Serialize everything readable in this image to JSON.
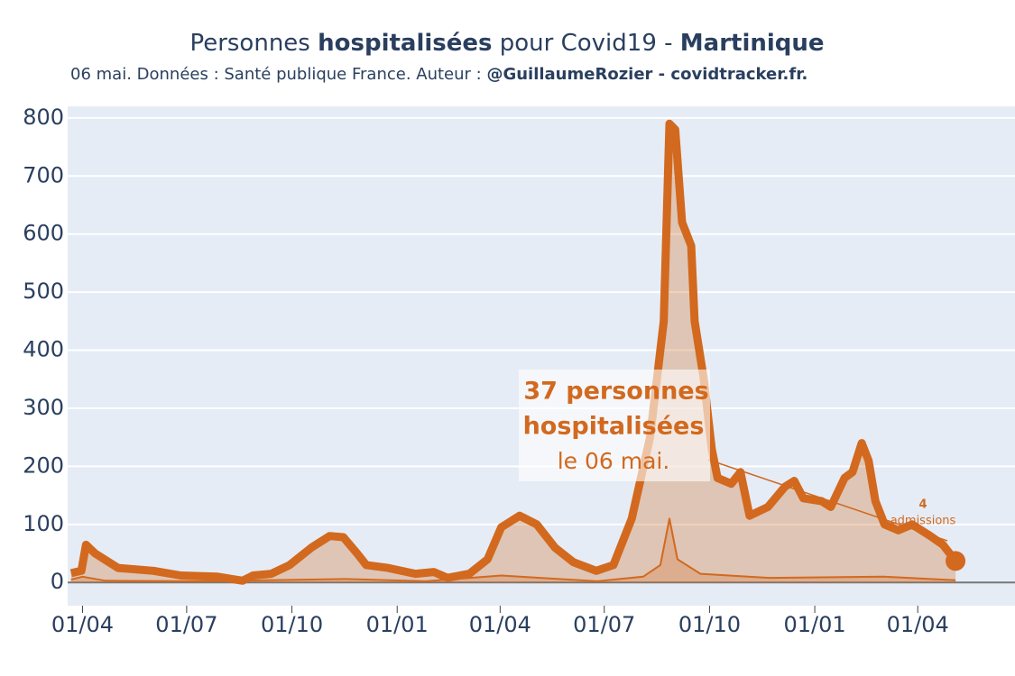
{
  "chart_data": {
    "type": "line",
    "title_parts": [
      "Personnes ",
      "hospitalisées",
      " pour Covid19 - ",
      "Martinique"
    ],
    "subtitle_parts": [
      "06 mai. Données : Santé publique France. Auteur : ",
      "@GuillaumeRozier - covidtracker.fr."
    ],
    "xlim": [
      -13,
      815
    ],
    "ylim": [
      -40,
      820
    ],
    "xticks": [
      {
        "value": 0,
        "label": "01/04"
      },
      {
        "value": 91,
        "label": "01/07"
      },
      {
        "value": 183,
        "label": "01/10"
      },
      {
        "value": 275,
        "label": "01/01"
      },
      {
        "value": 365,
        "label": "01/04"
      },
      {
        "value": 456,
        "label": "01/07"
      },
      {
        "value": 548,
        "label": "01/10"
      },
      {
        "value": 640,
        "label": "01/01"
      },
      {
        "value": 730,
        "label": "01/04"
      }
    ],
    "yticks": [
      0,
      100,
      200,
      300,
      400,
      500,
      600,
      700,
      800
    ],
    "grid": true,
    "series": [
      {
        "name": "Personnes hospitalisées",
        "color": "#d2691e",
        "x": [
          -10,
          -1,
          3,
          11,
          23,
          31,
          62,
          86,
          118,
          140,
          149,
          165,
          181,
          200,
          216,
          228,
          240,
          248,
          267,
          291,
          307,
          319,
          338,
          354,
          366,
          382,
          397,
          413,
          429,
          449,
          464,
          480,
          496,
          508,
          513,
          518,
          524,
          532,
          535,
          543,
          550,
          555,
          567,
          575,
          583,
          599,
          614,
          622,
          630,
          646,
          654,
          666,
          673,
          681,
          687,
          693,
          701,
          713,
          725,
          741,
          752,
          763
        ],
        "values": [
          16,
          20,
          65,
          50,
          35,
          25,
          20,
          12,
          10,
          3,
          12,
          15,
          30,
          60,
          80,
          78,
          50,
          30,
          25,
          15,
          18,
          8,
          15,
          40,
          95,
          115,
          100,
          60,
          35,
          20,
          30,
          110,
          250,
          450,
          790,
          780,
          620,
          580,
          450,
          350,
          230,
          180,
          170,
          190,
          115,
          130,
          165,
          175,
          145,
          140,
          130,
          180,
          190,
          240,
          210,
          140,
          100,
          90,
          100,
          80,
          65,
          37
        ]
      },
      {
        "name": "admissions",
        "color": "#d2691e",
        "x": [
          -10,
          0,
          20,
          100,
          200,
          230,
          300,
          366,
          400,
          450,
          490,
          505,
          513,
          520,
          540,
          600,
          700,
          763
        ],
        "values": [
          5,
          10,
          3,
          2,
          5,
          6,
          2,
          12,
          8,
          2,
          10,
          30,
          110,
          40,
          15,
          8,
          10,
          4
        ]
      }
    ],
    "annotation_main": [
      "37 personnes",
      "hospitalisées",
      "le 06 mai."
    ],
    "annotation_adm": [
      "4",
      "admissions"
    ]
  }
}
